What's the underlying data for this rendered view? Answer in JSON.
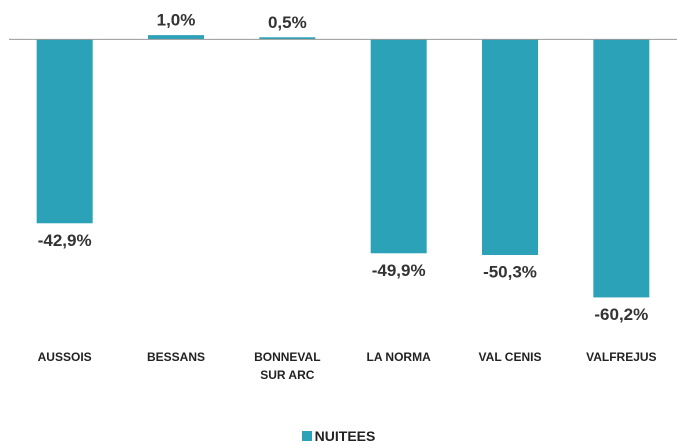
{
  "chart_data": {
    "type": "bar",
    "categories": [
      "AUSSOIS",
      "BESSANS",
      "BONNEVAL SUR ARC",
      "LA NORMA",
      "VAL CENIS",
      "VALFREJUS"
    ],
    "series": [
      {
        "name": "NUITEES",
        "color": "#2ba2b8",
        "values": [
          -42.9,
          1.0,
          0.5,
          -49.9,
          -50.3,
          -60.2
        ],
        "value_labels": [
          "-42,9%",
          "1,0%",
          "0,5%",
          "-49,9%",
          "-50,3%",
          "-60,2%"
        ]
      }
    ],
    "ylim": [
      -65,
      5
    ],
    "legend": "bottom"
  }
}
